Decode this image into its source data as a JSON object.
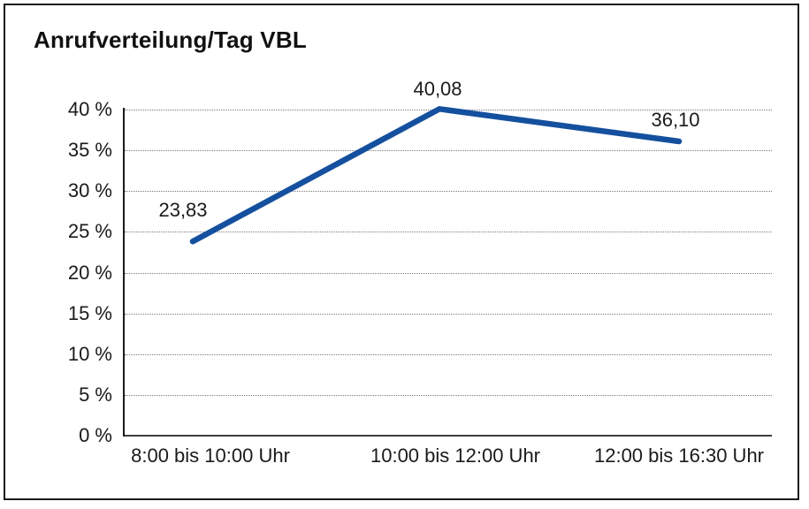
{
  "title": "Anrufverteilung/Tag VBL",
  "chart_data": {
    "type": "line",
    "title": "Anrufverteilung/Tag VBL",
    "categories": [
      "8:00 bis 10:00 Uhr",
      "10:00 bis 12:00 Uhr",
      "12:00 bis 16:30 Uhr"
    ],
    "values": [
      23.83,
      40.08,
      36.1
    ],
    "data_labels": [
      "23,83",
      "40,08",
      "36,10"
    ],
    "yticks": [
      0,
      5,
      10,
      15,
      20,
      25,
      30,
      35,
      40
    ],
    "ytick_labels": [
      "0 %",
      "5 %",
      "10 %",
      "15 %",
      "20 %",
      "25 %",
      "30 %",
      "35 %",
      "40 %"
    ],
    "ylim": [
      0,
      40
    ],
    "xlabel": "",
    "ylabel": "",
    "legend": "none",
    "grid": "horizontal-dotted",
    "line_color": "#14509e"
  }
}
